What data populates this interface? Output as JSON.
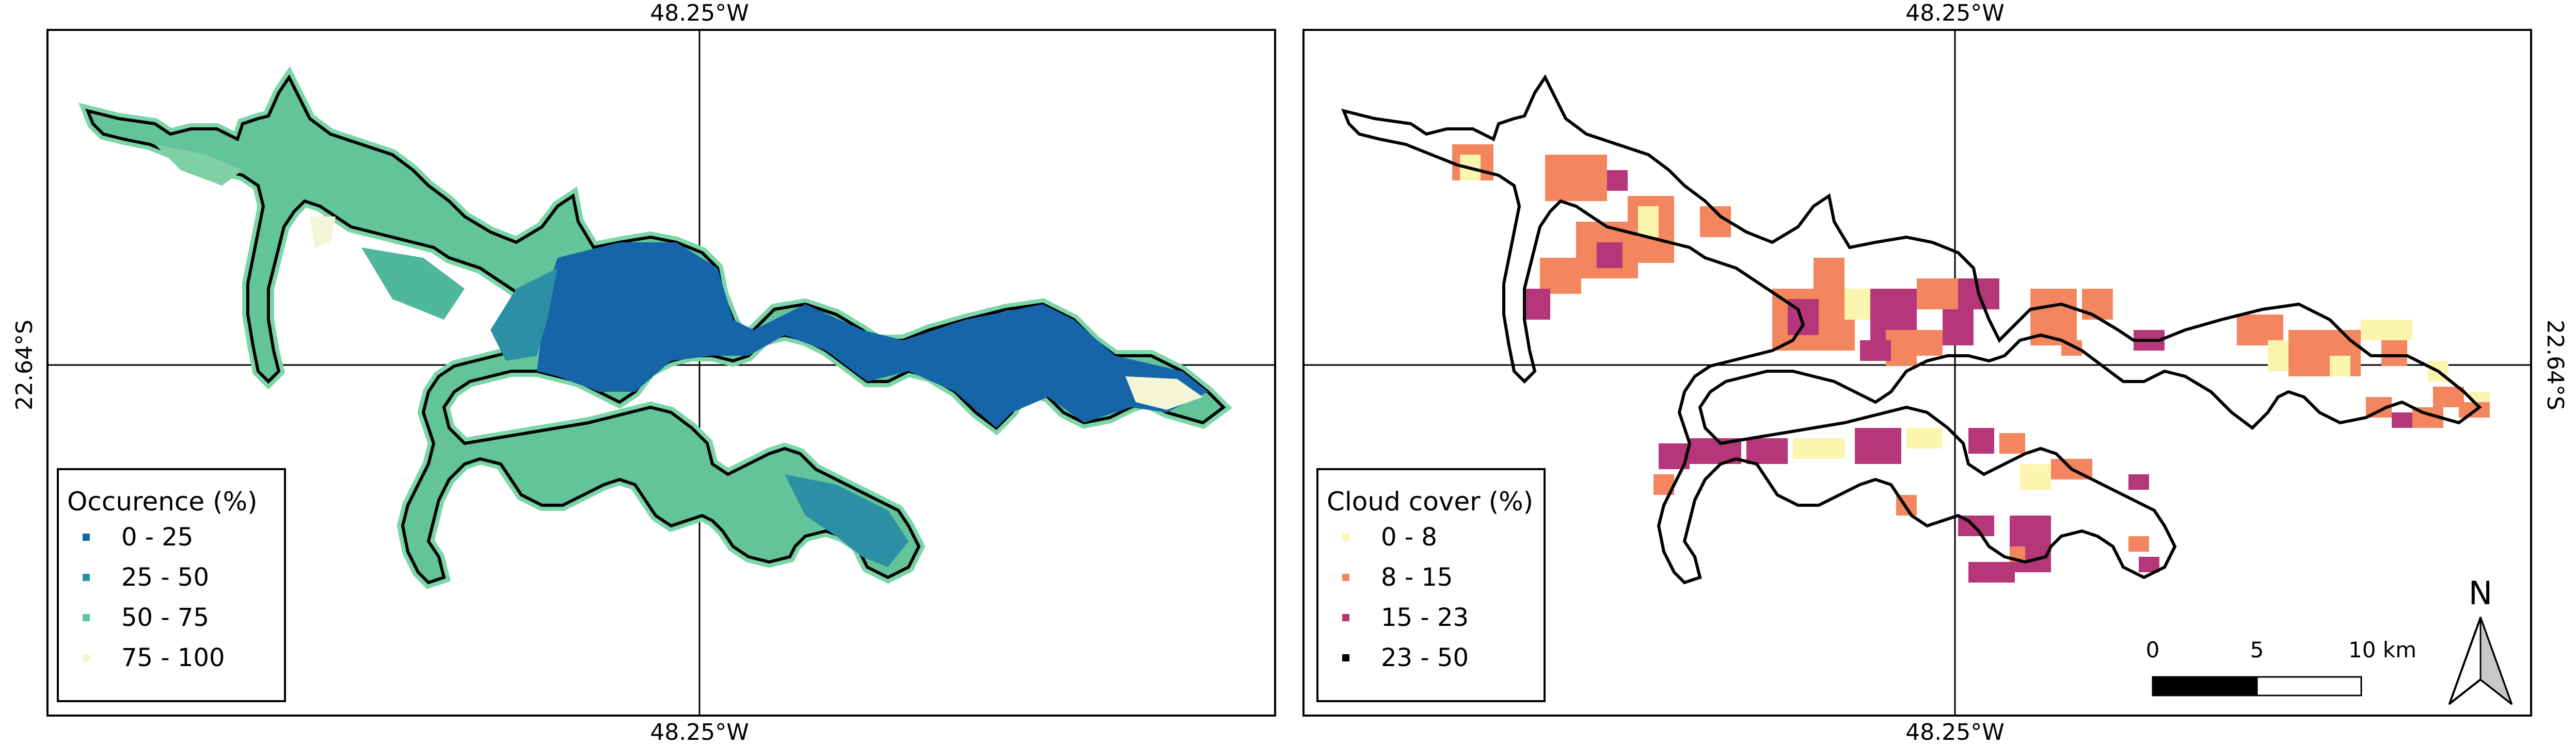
{
  "maps": [
    {
      "id": "occurrence",
      "coord_top": "48.25°W",
      "coord_bottom": "48.25°W",
      "coord_left": "22.64°S",
      "legend": {
        "title": "Occurence (%)",
        "items": [
          {
            "label": "0 - 25",
            "color": "#1565a8"
          },
          {
            "label": "25 - 50",
            "color": "#2d8fa6"
          },
          {
            "label": "50 - 75",
            "color": "#5cc79b"
          },
          {
            "label": "75 - 100",
            "color": "#f4f4d6"
          }
        ]
      }
    },
    {
      "id": "cloud-cover",
      "coord_top": "48.25°W",
      "coord_bottom": "48.25°W",
      "coord_right": "22.64°S",
      "legend": {
        "title": "Cloud cover (%)",
        "items": [
          {
            "label": "0 - 8",
            "color": "#fbf5b0"
          },
          {
            "label": "8 - 15",
            "color": "#f3865f"
          },
          {
            "label": "15 - 23",
            "color": "#b53679"
          },
          {
            "label": "23 - 50",
            "color": "#000000"
          }
        ]
      },
      "scale_bar": {
        "labels": [
          "0",
          "5",
          "10 km"
        ]
      },
      "north_arrow": {
        "label": "N"
      }
    }
  ]
}
